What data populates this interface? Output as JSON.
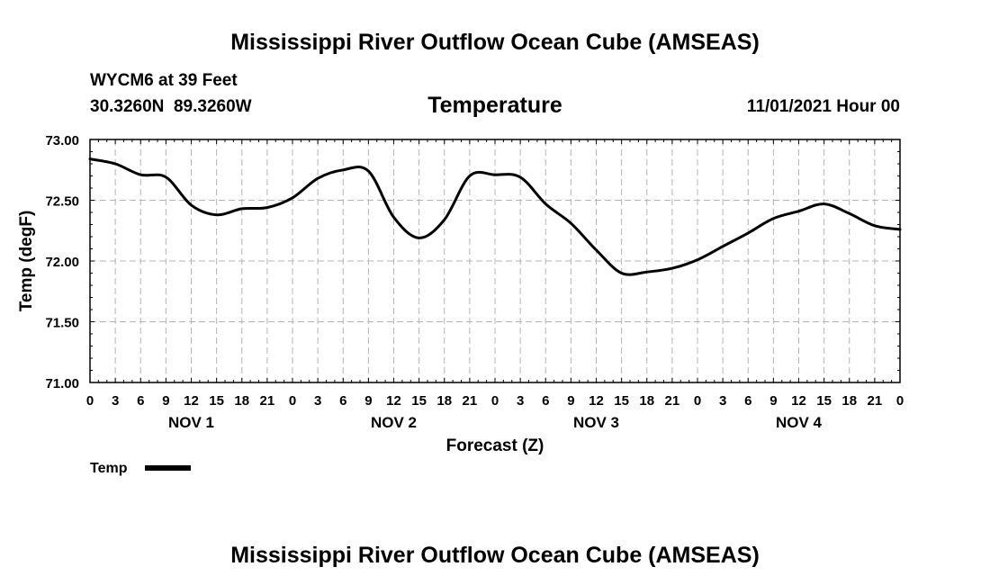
{
  "header": {
    "title": "Mississippi River Outflow Ocean Cube (AMSEAS)",
    "station": "WYCM6 at 39 Feet",
    "coords": "30.3260N  89.3260W",
    "variable": "Temperature",
    "issued": "11/01/2021 Hour 00"
  },
  "footer": {
    "title": "Mississippi River Outflow Ocean Cube (AMSEAS)"
  },
  "chart_data": {
    "type": "line",
    "title": "Temperature",
    "xlabel": "Forecast (Z)",
    "ylabel": "Temp (degF)",
    "ylim": [
      71.0,
      73.0
    ],
    "yticks": [
      "71.00",
      "71.50",
      "72.00",
      "72.50",
      "73.00"
    ],
    "x_range_hours": [
      0,
      96
    ],
    "x_tick_step_hours": 3,
    "x_tick_labels": [
      "0",
      "3",
      "6",
      "9",
      "12",
      "15",
      "18",
      "21",
      "0",
      "3",
      "6",
      "9",
      "12",
      "15",
      "18",
      "21",
      "0",
      "3",
      "6",
      "9",
      "12",
      "15",
      "18",
      "21",
      "0",
      "3",
      "6",
      "9",
      "12",
      "15",
      "18",
      "21",
      "0"
    ],
    "day_labels": [
      {
        "label": "NOV 1",
        "hour": 12
      },
      {
        "label": "NOV 2",
        "hour": 36
      },
      {
        "label": "NOV 3",
        "hour": 60
      },
      {
        "label": "NOV 4",
        "hour": 84
      }
    ],
    "grid": true,
    "legend": [
      {
        "name": "Temp",
        "color": "#000000"
      }
    ],
    "series": [
      {
        "name": "Temp",
        "color": "#000000",
        "x": [
          0,
          3,
          6,
          9,
          12,
          15,
          18,
          21,
          24,
          27,
          30,
          33,
          36,
          39,
          42,
          45,
          48,
          51,
          54,
          57,
          60,
          63,
          66,
          69,
          72,
          75,
          78,
          81,
          84,
          87,
          90,
          93,
          96
        ],
        "values": [
          72.84,
          72.8,
          72.71,
          72.69,
          72.46,
          72.38,
          72.43,
          72.44,
          72.52,
          72.68,
          72.75,
          72.74,
          72.36,
          72.19,
          72.34,
          72.7,
          72.71,
          72.69,
          72.47,
          72.31,
          72.09,
          71.9,
          71.91,
          71.94,
          72.01,
          72.12,
          72.23,
          72.35,
          72.41,
          72.47,
          72.39,
          72.29,
          72.26
        ]
      }
    ]
  }
}
